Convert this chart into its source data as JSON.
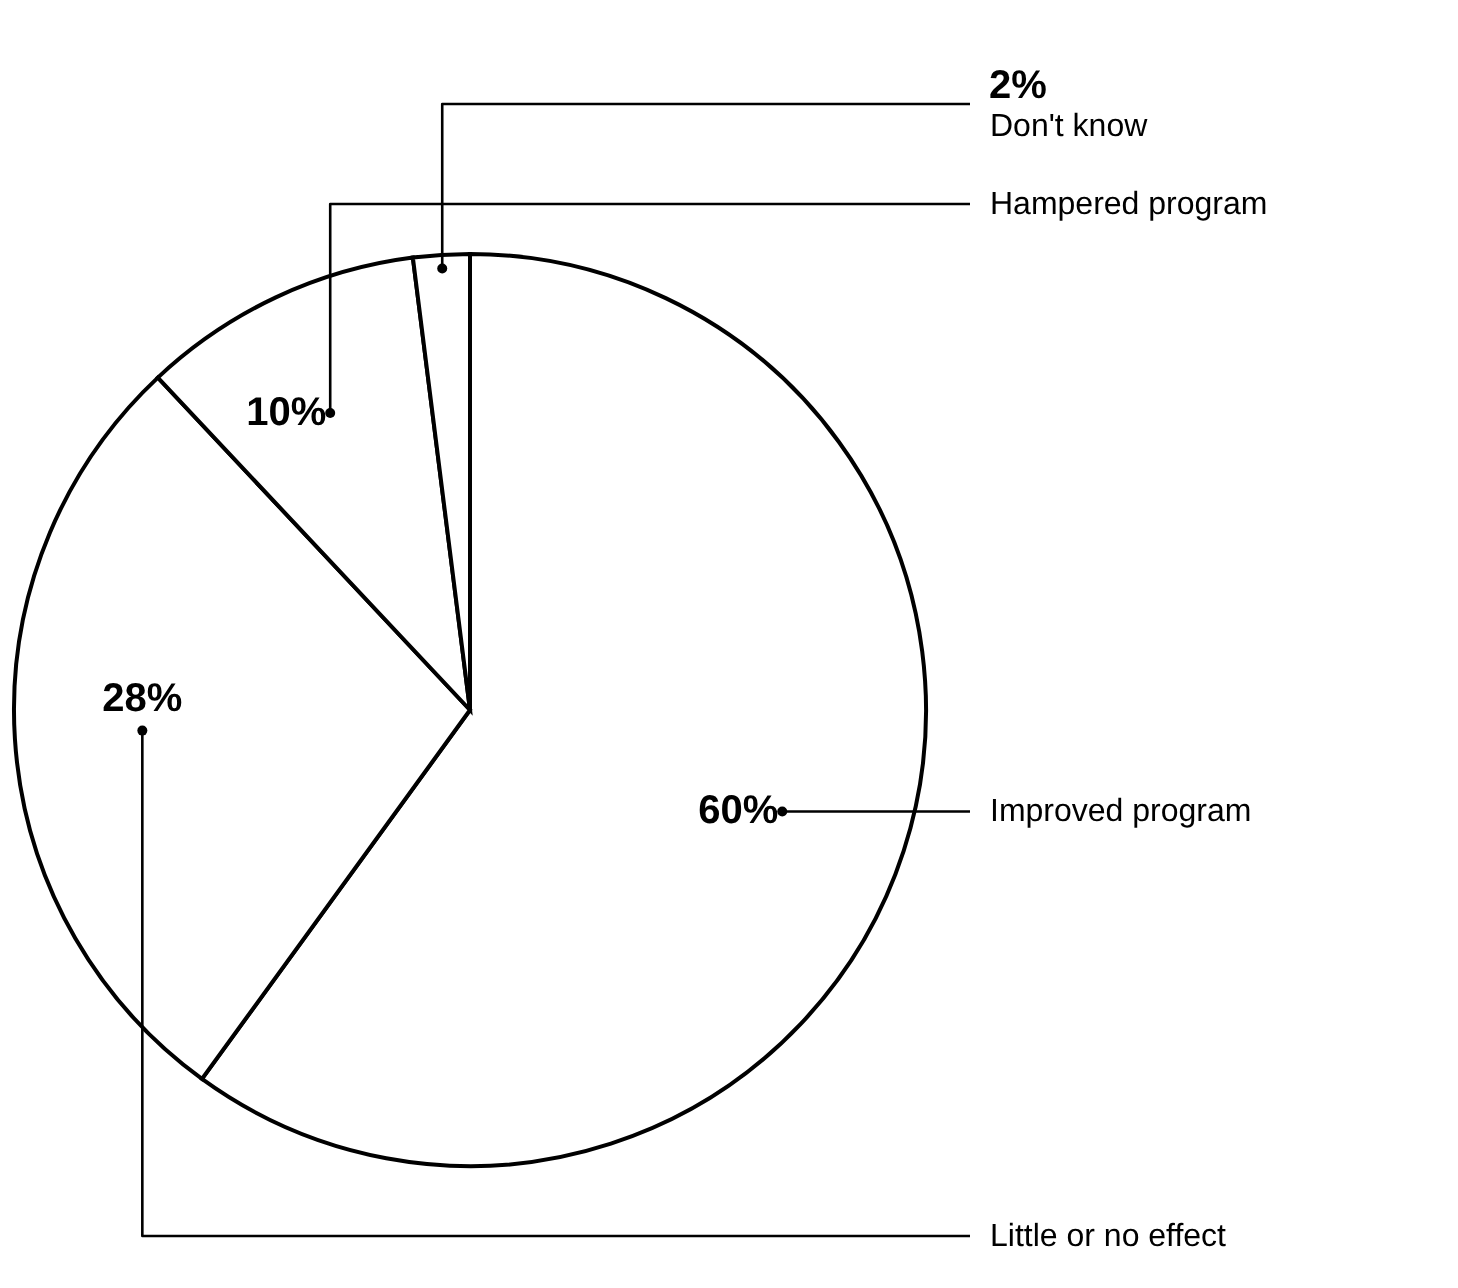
{
  "chart_data": {
    "type": "pie",
    "categories": [
      "Improved program",
      "Little or no effect",
      "Hampered program",
      "Don't know"
    ],
    "values": [
      60,
      28,
      10,
      2
    ],
    "colors": [
      "#ffffff",
      "#ffffff",
      "#ffffff",
      "#ffffff"
    ],
    "value_labels": [
      "60%",
      "28%",
      "10%",
      "2%"
    ]
  }
}
